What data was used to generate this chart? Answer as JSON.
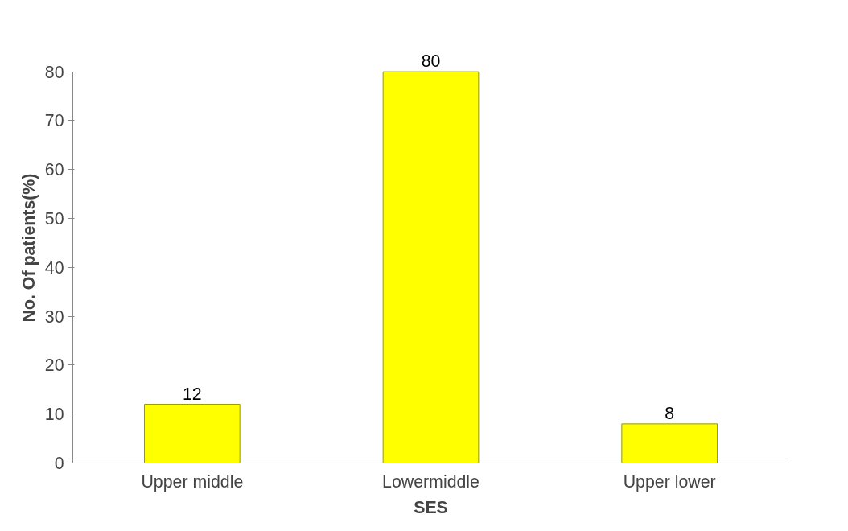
{
  "chart_data": {
    "type": "bar",
    "xlabel": "SES",
    "ylabel": "No. Of patients(%)",
    "categories": [
      "Upper middle",
      "Lowermiddle",
      "Upper lower"
    ],
    "values": [
      12,
      80,
      8
    ],
    "color": "#ffff00",
    "ylim": [
      0,
      80
    ],
    "yticks": [
      0,
      10,
      20,
      30,
      40,
      50,
      60,
      70,
      80
    ],
    "grid": false,
    "data_labels": true
  }
}
